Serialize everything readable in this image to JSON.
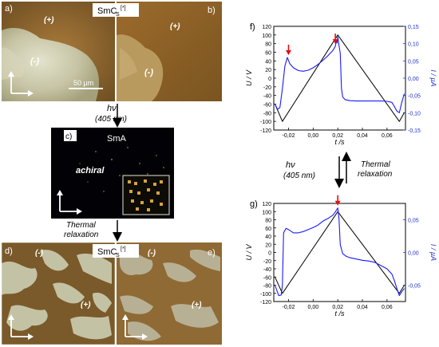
{
  "left_panel": {
    "top_label": "SmC",
    "top_label_sub": "S",
    "top_label_sup": "[*]",
    "panel_a": {
      "letter": "a)",
      "plus": "(+)",
      "minus": "(-)",
      "scale": "50 µm"
    },
    "panel_b": {
      "letter": "b)",
      "plus": "(+)",
      "minus": "(-)"
    },
    "hv_text": "hν",
    "hv_wavelength": "(405 nm)",
    "panel_c": {
      "letter": "c)",
      "phase": "SmA",
      "achiral": "achiral"
    },
    "thermal_1": "Thermal",
    "thermal_2": "relaxation",
    "bottom_label": "SmC",
    "bottom_label_sub": "S",
    "bottom_label_sup": "[*]",
    "panel_d": {
      "letter": "d)",
      "plus": "(+)",
      "minus": "(-)"
    },
    "panel_e": {
      "letter": "e)",
      "plus": "(+)",
      "minus": "(-)"
    }
  },
  "middle_right": {
    "hv_text": "hν",
    "hv_wavelength": "(405 nm)",
    "thermal_1": "Thermal",
    "thermal_2": "relaxation"
  },
  "chart_data": [
    {
      "type": "line",
      "panel": "f)",
      "xlabel": "t /s",
      "ylabel_left": "U / V",
      "ylabel_right": "I / µA",
      "xlim": [
        -0.032,
        0.075
      ],
      "xticks": [
        "-0,02",
        "0,00",
        "0,02",
        "0,04",
        "0,06"
      ],
      "ylim_left": [
        -120,
        120
      ],
      "yticks_left": [
        "-120",
        "-100",
        "-80",
        "-60",
        "-40",
        "-20",
        "0",
        "20",
        "40",
        "60",
        "80",
        "100",
        "120"
      ],
      "ylim_right": [
        -0.15,
        0.15
      ],
      "yticks_right": [
        "-0,15",
        "-0,10",
        "-0,05",
        "0,00",
        "0,05",
        "0,10",
        "0,15"
      ],
      "series": [
        {
          "axis": "left",
          "color": "#000000",
          "x": [
            -0.031,
            -0.025,
            0.02,
            0.07,
            0.074
          ],
          "y": [
            -60,
            -100,
            100,
            -100,
            -80
          ]
        },
        {
          "axis": "right",
          "color": "#1a1aff",
          "x": [
            -0.031,
            -0.029,
            -0.027,
            -0.025,
            -0.023,
            -0.021,
            -0.019,
            -0.016,
            -0.012,
            -0.008,
            -0.004,
            0.0,
            0.004,
            0.008,
            0.012,
            0.016,
            0.018,
            0.019,
            0.0195,
            0.02,
            0.021,
            0.022,
            0.023,
            0.024,
            0.026,
            0.03,
            0.035,
            0.04,
            0.045,
            0.05,
            0.055,
            0.06,
            0.064,
            0.066,
            0.068,
            0.07,
            0.072,
            0.074
          ],
          "y": [
            -0.075,
            -0.09,
            -0.085,
            -0.03,
            0.035,
            0.06,
            0.042,
            0.03,
            0.022,
            0.02,
            0.023,
            0.03,
            0.04,
            0.052,
            0.065,
            0.08,
            0.092,
            0.11,
            0.102,
            0.12,
            0.095,
            0.072,
            -0.03,
            -0.055,
            -0.062,
            -0.065,
            -0.066,
            -0.066,
            -0.066,
            -0.066,
            -0.066,
            -0.067,
            -0.07,
            -0.082,
            -0.095,
            -0.1,
            -0.07,
            -0.045
          ]
        }
      ],
      "arrows_at_x": [
        -0.02,
        0.018
      ]
    },
    {
      "type": "line",
      "panel": "g)",
      "xlabel": "t /s",
      "ylabel_left": "U / V",
      "ylabel_right": "I / µA",
      "xlim": [
        -0.032,
        0.075
      ],
      "xticks": [
        "-0,02",
        "0,00",
        "0,02",
        "0,04",
        "0,06"
      ],
      "ylim_left": [
        -120,
        120
      ],
      "yticks_left": [
        "-120",
        "-100",
        "-80",
        "-60",
        "-40",
        "-20",
        "0",
        "20",
        "40",
        "60",
        "80",
        "100",
        "120"
      ],
      "ylim_right": [
        -0.075,
        0.075
      ],
      "yticks_right": [
        "-0,05",
        "0,00",
        "0,05"
      ],
      "series": [
        {
          "axis": "left",
          "color": "#000000",
          "x": [
            -0.031,
            -0.025,
            0.02,
            0.07,
            0.074
          ],
          "y": [
            -60,
            -100,
            100,
            -100,
            -80
          ]
        },
        {
          "axis": "right",
          "color": "#1a1aff",
          "x": [
            -0.031,
            -0.028,
            -0.026,
            -0.025,
            -0.024,
            -0.022,
            -0.02,
            -0.016,
            -0.012,
            -0.008,
            -0.004,
            0.0,
            0.004,
            0.008,
            0.012,
            0.016,
            0.018,
            0.02,
            0.021,
            0.022,
            0.024,
            0.027,
            0.03,
            0.035,
            0.04,
            0.045,
            0.05,
            0.055,
            0.06,
            0.064,
            0.066,
            0.068,
            0.07,
            0.072,
            0.074
          ],
          "y": [
            -0.05,
            -0.066,
            -0.065,
            -0.05,
            0.03,
            0.037,
            0.035,
            0.03,
            0.03,
            0.032,
            0.035,
            0.038,
            0.042,
            0.048,
            0.052,
            0.057,
            0.062,
            0.068,
            0.052,
            0.012,
            -0.002,
            -0.006,
            -0.008,
            -0.01,
            -0.012,
            -0.013,
            -0.015,
            -0.02,
            -0.025,
            -0.033,
            -0.043,
            -0.055,
            -0.066,
            -0.06,
            -0.055
          ]
        }
      ],
      "arrows_at_x": [
        0.02
      ]
    }
  ],
  "colors": {
    "arrow": "#e31010",
    "current": "#1a1aff",
    "voltage": "#000000",
    "right_axis": "#2233cc"
  }
}
